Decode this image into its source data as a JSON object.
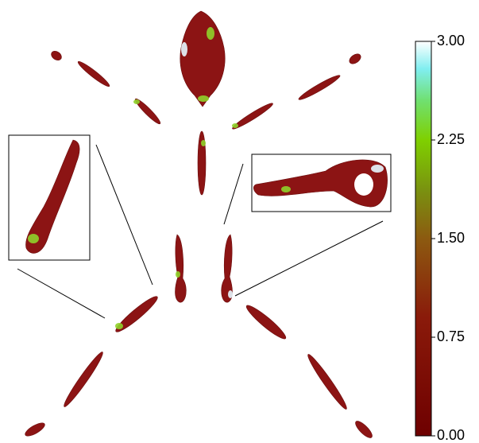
{
  "colorbar": {
    "lim": [
      0,
      3
    ],
    "ticks": [
      {
        "value": 0,
        "label": "0.00"
      },
      {
        "value": 0.75,
        "label": "0.75"
      },
      {
        "value": 1.5,
        "label": "1.50"
      },
      {
        "value": 2.25,
        "label": "2.25"
      },
      {
        "value": 3,
        "label": "3.00"
      }
    ]
  }
}
